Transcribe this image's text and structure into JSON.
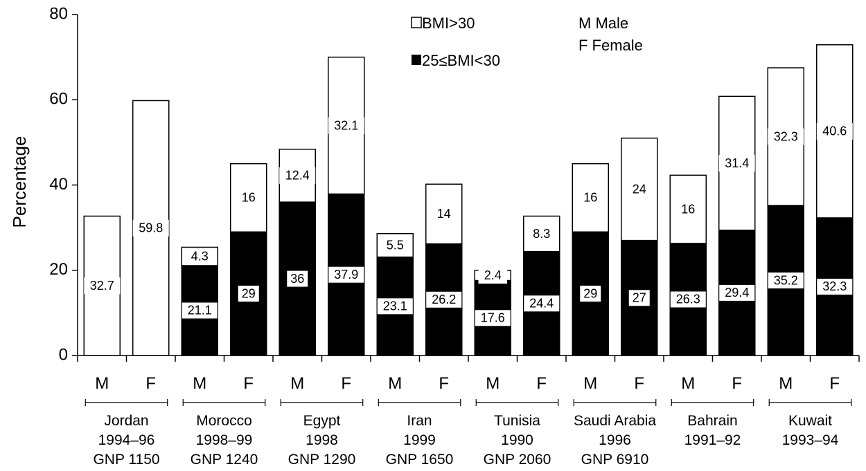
{
  "chart_data": {
    "type": "bar",
    "stacked": true,
    "ylabel": "Percentage",
    "ylim": [
      0,
      80
    ],
    "yticks": [
      0,
      20,
      40,
      60,
      80
    ],
    "grid": false,
    "bars": [
      {
        "sex": "M",
        "overweight": 0,
        "obese": 32.7,
        "obese_label": "32.7",
        "overweight_label": ""
      },
      {
        "sex": "F",
        "overweight": 0,
        "obese": 59.8,
        "obese_label": "59.8",
        "overweight_label": ""
      },
      {
        "sex": "M",
        "overweight": 21.1,
        "obese": 4.3,
        "obese_label": "4.3",
        "overweight_label": "21.1"
      },
      {
        "sex": "F",
        "overweight": 29,
        "obese": 16,
        "obese_label": "16",
        "overweight_label": "29"
      },
      {
        "sex": "M",
        "overweight": 36,
        "obese": 12.4,
        "obese_label": "12.4",
        "overweight_label": "36"
      },
      {
        "sex": "F",
        "overweight": 37.9,
        "obese": 32.1,
        "obese_label": "32.1",
        "overweight_label": "37.9"
      },
      {
        "sex": "M",
        "overweight": 23.1,
        "obese": 5.5,
        "obese_label": "5.5",
        "overweight_label": "23.1"
      },
      {
        "sex": "F",
        "overweight": 26.2,
        "obese": 14,
        "obese_label": "14",
        "overweight_label": "26.2"
      },
      {
        "sex": "M",
        "overweight": 17.6,
        "obese": 2.4,
        "obese_label": "2.4",
        "overweight_label": "17.6"
      },
      {
        "sex": "F",
        "overweight": 24.4,
        "obese": 8.3,
        "obese_label": "8.3",
        "overweight_label": "24.4"
      },
      {
        "sex": "M",
        "overweight": 29,
        "obese": 16,
        "obese_label": "16",
        "overweight_label": "29"
      },
      {
        "sex": "F",
        "overweight": 27,
        "obese": 24,
        "obese_label": "24",
        "overweight_label": "27"
      },
      {
        "sex": "M",
        "overweight": 26.3,
        "obese": 16,
        "obese_label": "16",
        "overweight_label": "26.3"
      },
      {
        "sex": "F",
        "overweight": 29.4,
        "obese": 31.4,
        "obese_label": "31.4",
        "overweight_label": "29.4"
      },
      {
        "sex": "M",
        "overweight": 35.2,
        "obese": 32.3,
        "obese_label": "32.3",
        "overweight_label": "35.2"
      },
      {
        "sex": "F",
        "overweight": 32.3,
        "obese": 40.6,
        "obese_label": "40.6",
        "overweight_label": "32.3"
      }
    ],
    "groups": [
      {
        "country": "Jordan",
        "years": "1994–96",
        "gnp": "GNP 1150"
      },
      {
        "country": "Morocco",
        "years": "1998–99",
        "gnp": "GNP 1240"
      },
      {
        "country": "Egypt",
        "years": "1998",
        "gnp": "GNP 1290"
      },
      {
        "country": "Iran",
        "years": "1999",
        "gnp": "GNP 1650"
      },
      {
        "country": "Tunisia",
        "years": "1990",
        "gnp": "GNP 2060"
      },
      {
        "country": "Saudi Arabia",
        "years": "1996",
        "gnp": "GNP 6910"
      },
      {
        "country": "Bahrain",
        "years": "1991–92",
        "gnp": ""
      },
      {
        "country": "Kuwait",
        "years": "1993–94",
        "gnp": ""
      }
    ],
    "legend": {
      "obese": "BMI>30",
      "overweight": "25≤BMI<30",
      "male_note": "M Male",
      "female_note": "F Female"
    },
    "colors": {
      "obese": "#ffffff",
      "overweight": "#000000"
    }
  }
}
